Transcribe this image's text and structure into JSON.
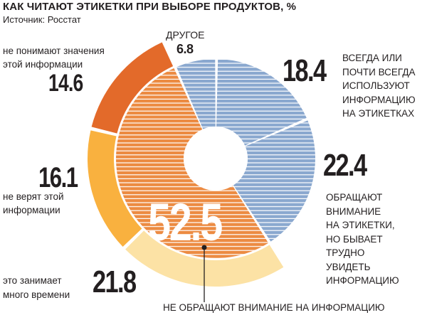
{
  "header": {
    "title": "КАК ЧИТАЮТ ЭТИКЕТКИ ПРИ ВЫБОРЕ ПРОДУКТОВ, %",
    "source": "Источник: Росстат"
  },
  "chart_data": {
    "type": "sunburst",
    "title": "КАК ЧИТАЮТ ЭТИКЕТКИ ПРИ ВЫБОРЕ ПРОДУКТОВ, %",
    "inner": [
      {
        "label": "ДРУГОЕ",
        "value": 6.8,
        "color": "#7e9fc9"
      },
      {
        "label": "ВСЕГДА ИЛИ ПОЧТИ ВСЕГДА ИСПОЛЬЗУЮТ ИНФОРМАЦИЮ НА ЭТИКЕТКАХ",
        "value": 18.4,
        "color": "#7e9fc9"
      },
      {
        "label": "ОБРАЩАЮТ ВНИМАНИЕ НА ЭТИКЕТКИ, НО БЫВАЕТ ТРУДНО УВИДЕТЬ ИНФОРМАЦИЮ",
        "value": 22.4,
        "color": "#7e9fc9"
      },
      {
        "label": "НЕ ОБРАЩАЮТ ВНИМАНИЕ НА ИНФОРМАЦИЮ",
        "value": 52.5,
        "color": "#ea8a3f"
      }
    ],
    "outer": [
      {
        "label": "это занимает много времени",
        "value": 21.8,
        "color": "#fce2a5"
      },
      {
        "label": "не верят этой информации",
        "value": 16.1,
        "color": "#f9b13f"
      },
      {
        "label": "не понимают значения этой информации",
        "value": 14.6,
        "color": "#e36a2a"
      }
    ]
  },
  "labels": {
    "drugoe_name": "ДРУГОЕ",
    "drugoe_value": "6.8",
    "always_value": "18.4",
    "always_lines": [
      "ВСЕГДА ИЛИ",
      "ПОЧТИ ВСЕГДА",
      "ИСПОЛЬЗУЮТ",
      "ИНФОРМАЦИЮ",
      "НА ЭТИКЕТКАХ"
    ],
    "attention_value": "22.4",
    "attention_lines": [
      "ОБРАЩАЮТ",
      "ВНИМАНИЕ",
      "НА ЭТИКЕТКИ,",
      "НО БЫВАЕТ",
      "ТРУДНО",
      "УВИДЕТЬ",
      "ИНФОРМАЦИЮ"
    ],
    "no_attention_value": "52.5",
    "no_attention_name": "НЕ ОБРАЩАЮТ ВНИМАНИЕ НА ИНФОРМАЦИЮ",
    "understand_lines": [
      "не понимают значения",
      "этой информации"
    ],
    "understand_value": "14.6",
    "trust_value": "16.1",
    "trust_lines": [
      "не верят этой",
      "информации"
    ],
    "time_lines": [
      "это занимает",
      "много времени"
    ],
    "time_value": "21.8"
  }
}
